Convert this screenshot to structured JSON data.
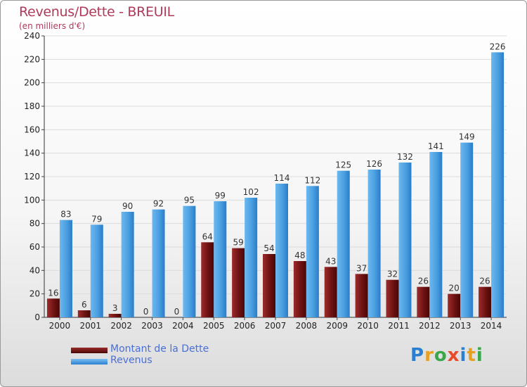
{
  "chart_data": {
    "type": "bar",
    "title": "Revenus/Dette - BREUIL",
    "subtitle": "(en milliers d'€)",
    "xlabel": "",
    "ylabel": "",
    "ylim": [
      0,
      240
    ],
    "yticks": [
      0,
      20,
      40,
      60,
      80,
      100,
      120,
      140,
      160,
      180,
      200,
      220,
      240
    ],
    "grid": true,
    "legend_position": "bottom-left",
    "categories": [
      "2000",
      "2001",
      "2002",
      "2003",
      "2004",
      "2005",
      "2006",
      "2007",
      "2008",
      "2009",
      "2010",
      "2011",
      "2012",
      "2013",
      "2014"
    ],
    "series": [
      {
        "name": "Montant de la Dette",
        "color": "#7a1a1a",
        "values": [
          16,
          6,
          3,
          0,
          0,
          64,
          59,
          54,
          48,
          43,
          37,
          32,
          26,
          20,
          26
        ]
      },
      {
        "name": "Revenus",
        "color": "#4a9fe0",
        "values": [
          83,
          79,
          90,
          92,
          95,
          99,
          102,
          114,
          112,
          125,
          126,
          132,
          141,
          149,
          226
        ]
      }
    ]
  },
  "logo": {
    "text": "Proxiti",
    "colors": [
      "#2a7fd0",
      "#e8a020",
      "#3aa84a",
      "#e84a2a",
      "#2a7fd0",
      "#e8a020",
      "#3aa84a"
    ]
  }
}
